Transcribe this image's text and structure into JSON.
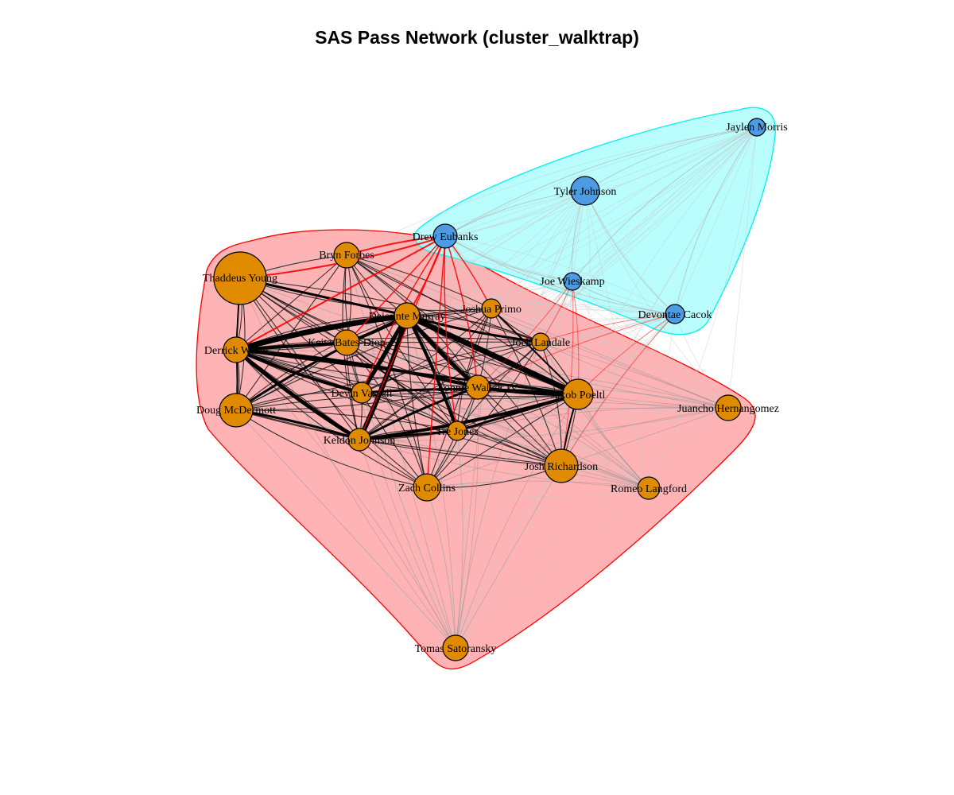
{
  "title": "SAS Pass Network (cluster_walktrap)",
  "colors": {
    "cluster_red_fill": "#ffb3b5",
    "cluster_red_stroke": "#ff0000",
    "cluster_cyan_fill": "#b9fdfd",
    "cluster_cyan_stroke": "#00f0f0",
    "node_orange": "#e08a00",
    "node_blue": "#4c9be3",
    "edge_inter_cluster": "#ff0000",
    "edge_intra": "#000000",
    "edge_faint": "#c8c8c8"
  },
  "clusters": [
    {
      "id": 1,
      "color": "red",
      "members": [
        "Thaddeus Young",
        "Bryn Forbes",
        "Dejounte Murray",
        "Keita Bates-Diop",
        "Joshua Primo",
        "Derrick White",
        "Jock Landale",
        "Devin Vassell",
        "Lonnie Walker IV",
        "Jakob Poeltl",
        "Doug McDermott",
        "Tre Jones",
        "Keldon Johnson",
        "Juancho Hernangomez",
        "Josh Richardson",
        "Zach Collins",
        "Romeo Langford",
        "Tomas Satoransky"
      ]
    },
    {
      "id": 2,
      "color": "cyan",
      "members": [
        "Jaylen Morris",
        "Tyler Johnson",
        "Drew Eubanks",
        "Joe Wieskamp",
        "Devontae Cacok"
      ]
    }
  ],
  "nodes": [
    {
      "label": "Jaylen Morris",
      "cluster": 2
    },
    {
      "label": "Tyler Johnson",
      "cluster": 2
    },
    {
      "label": "Drew Eubanks",
      "cluster": 2
    },
    {
      "label": "Joe Wieskamp",
      "cluster": 2
    },
    {
      "label": "Devontae Cacok",
      "cluster": 2
    },
    {
      "label": "Bryn Forbes",
      "cluster": 1
    },
    {
      "label": "Thaddeus Young",
      "cluster": 1
    },
    {
      "label": "Dejounte Murray",
      "cluster": 1
    },
    {
      "label": "Joshua Primo",
      "cluster": 1
    },
    {
      "label": "Keita Bates-Diop",
      "cluster": 1
    },
    {
      "label": "Derrick White",
      "cluster": 1
    },
    {
      "label": "Jock Landale",
      "cluster": 1
    },
    {
      "label": "Devin Vassell",
      "cluster": 1
    },
    {
      "label": "Lonnie Walker IV",
      "cluster": 1
    },
    {
      "label": "Jakob Poeltl",
      "cluster": 1
    },
    {
      "label": "Doug McDermott",
      "cluster": 1
    },
    {
      "label": "Juancho Hernangomez",
      "cluster": 1
    },
    {
      "label": "Tre Jones",
      "cluster": 1
    },
    {
      "label": "Keldon Johnson",
      "cluster": 1
    },
    {
      "label": "Josh Richardson",
      "cluster": 1
    },
    {
      "label": "Zach Collins",
      "cluster": 1
    },
    {
      "label": "Romeo Langford",
      "cluster": 1
    },
    {
      "label": "Tomas Satoransky",
      "cluster": 1
    }
  ]
}
